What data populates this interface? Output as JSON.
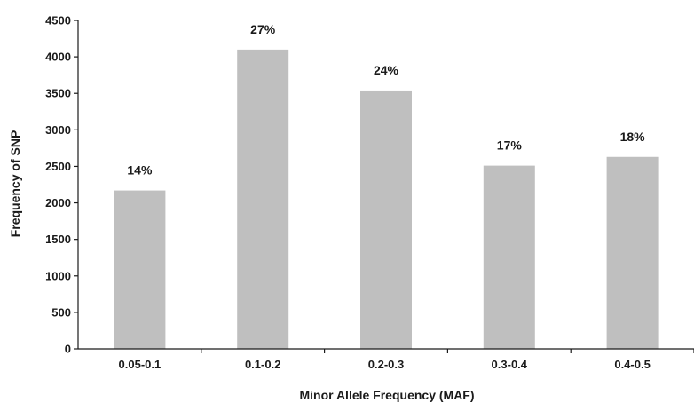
{
  "chart_data": {
    "type": "bar",
    "title": "",
    "xlabel": "Minor Allele Frequency (MAF)",
    "ylabel": "Frequency of SNP",
    "categories": [
      "0.05-0.1",
      "0.1-0.2",
      "0.2-0.3",
      "0.3-0.4",
      "0.4-0.5"
    ],
    "values": [
      2170,
      4100,
      3540,
      2510,
      2630
    ],
    "data_labels": [
      "14%",
      "27%",
      "24%",
      "17%",
      "18%"
    ],
    "ylim": [
      0,
      4500
    ],
    "yticks": [
      0,
      500,
      1000,
      1500,
      2000,
      2500,
      3000,
      3500,
      4000,
      4500
    ],
    "grid": false,
    "legend": "none",
    "colors": {
      "bar": "#bfbfbf",
      "axis": "#1a1a1a"
    }
  }
}
